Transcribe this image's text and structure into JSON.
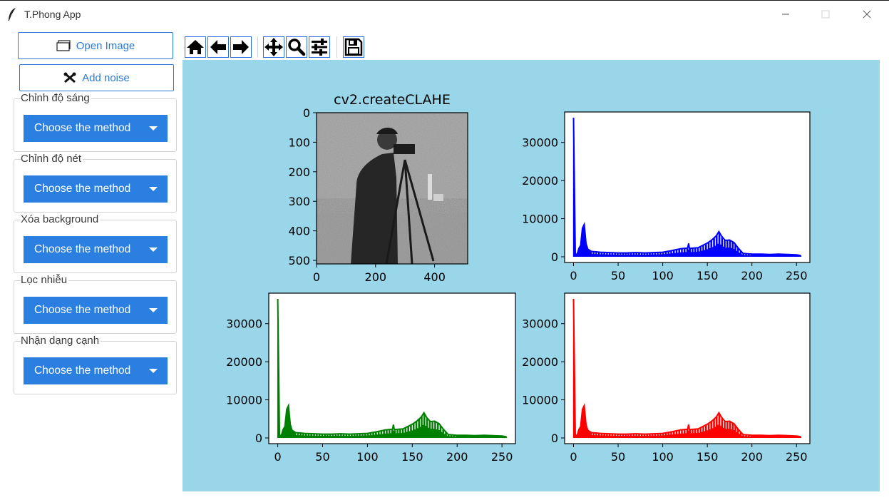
{
  "window": {
    "title": "T.Phong App"
  },
  "left_panel": {
    "open_image_label": "Open Image",
    "add_noise_label": "Add noise",
    "groups": [
      {
        "label": "Chỉnh độ sáng",
        "dropdown": "Choose the method"
      },
      {
        "label": "Chỉnh độ nét",
        "dropdown": "Choose the method"
      },
      {
        "label": "Xóa background",
        "dropdown": "Choose the method"
      },
      {
        "label": "Lọc nhiễu",
        "dropdown": "Choose the method"
      },
      {
        "label": "Nhận dạng cạnh",
        "dropdown": "Choose the method"
      }
    ]
  },
  "toolbar": {
    "icons": [
      "home-icon",
      "back-arrow-icon",
      "forward-arrow-icon",
      "pan-icon",
      "zoom-icon",
      "configure-subplots-icon",
      "save-icon"
    ]
  },
  "colors": {
    "accent": "#2b7fe0",
    "canvas_bg": "#99d6e9",
    "blue": "#0000ff",
    "green": "#008000",
    "red": "#ff0000"
  },
  "chart_data": [
    {
      "type": "image",
      "title": "cv2.createCLAHE",
      "x_ticks": [
        "0",
        "200",
        "400"
      ],
      "y_ticks": [
        "0",
        "100",
        "200",
        "300",
        "400",
        "500"
      ]
    },
    {
      "type": "line",
      "color": "blue",
      "xlim": [
        -10,
        265
      ],
      "ylim": [
        -1500,
        38000
      ],
      "x_ticks": [
        "0",
        "50",
        "100",
        "150",
        "200",
        "250"
      ],
      "y_ticks": [
        "0",
        "10000",
        "20000",
        "30000"
      ],
      "x": [
        0,
        2,
        4,
        6,
        8,
        10,
        12,
        14,
        16,
        18,
        20,
        25,
        30,
        40,
        50,
        60,
        70,
        80,
        90,
        100,
        110,
        120,
        128,
        129,
        130,
        140,
        150,
        155,
        160,
        163,
        166,
        170,
        175,
        180,
        185,
        190,
        200,
        210,
        220,
        230,
        240,
        250,
        255
      ],
      "y": [
        36500,
        800,
        600,
        2200,
        3000,
        7500,
        8500,
        3500,
        2000,
        1700,
        1400,
        1300,
        1200,
        1100,
        1000,
        1000,
        1100,
        1000,
        1100,
        1200,
        1600,
        2100,
        2300,
        3500,
        2200,
        2400,
        3600,
        4400,
        5500,
        6600,
        5400,
        4300,
        4400,
        3700,
        2200,
        900,
        700,
        700,
        600,
        700,
        600,
        500,
        300
      ]
    },
    {
      "type": "line",
      "color": "green",
      "xlim": [
        -10,
        265
      ],
      "ylim": [
        -1500,
        38000
      ],
      "x_ticks": [
        "0",
        "50",
        "100",
        "150",
        "200",
        "250"
      ],
      "y_ticks": [
        "0",
        "10000",
        "20000",
        "30000"
      ],
      "x": [
        0,
        2,
        4,
        6,
        8,
        10,
        12,
        14,
        16,
        18,
        20,
        25,
        30,
        40,
        50,
        60,
        70,
        80,
        90,
        100,
        110,
        120,
        128,
        129,
        130,
        140,
        150,
        155,
        160,
        163,
        166,
        170,
        175,
        180,
        185,
        190,
        200,
        210,
        220,
        230,
        240,
        250,
        255
      ],
      "y": [
        36500,
        800,
        600,
        2200,
        3000,
        7500,
        8500,
        3500,
        2000,
        1700,
        1400,
        1300,
        1200,
        1100,
        1000,
        1000,
        1100,
        1000,
        1100,
        1200,
        1600,
        2100,
        2300,
        3500,
        2200,
        2400,
        3600,
        4400,
        5500,
        6600,
        5400,
        4300,
        4400,
        3700,
        2200,
        900,
        700,
        700,
        600,
        700,
        600,
        500,
        300
      ]
    },
    {
      "type": "line",
      "color": "red",
      "xlim": [
        -10,
        265
      ],
      "ylim": [
        -1500,
        38000
      ],
      "x_ticks": [
        "0",
        "50",
        "100",
        "150",
        "200",
        "250"
      ],
      "y_ticks": [
        "0",
        "10000",
        "20000",
        "30000"
      ],
      "x": [
        0,
        2,
        4,
        6,
        8,
        10,
        12,
        14,
        16,
        18,
        20,
        25,
        30,
        40,
        50,
        60,
        70,
        80,
        90,
        100,
        110,
        120,
        128,
        129,
        130,
        140,
        150,
        155,
        160,
        163,
        166,
        170,
        175,
        180,
        185,
        190,
        200,
        210,
        220,
        230,
        240,
        250,
        255
      ],
      "y": [
        36500,
        800,
        600,
        2200,
        3000,
        7500,
        8500,
        3500,
        2000,
        1700,
        1400,
        1300,
        1200,
        1100,
        1000,
        1000,
        1100,
        1000,
        1100,
        1200,
        1600,
        2100,
        2300,
        3500,
        2200,
        2400,
        3600,
        4400,
        5500,
        6600,
        5400,
        4300,
        4400,
        3700,
        2200,
        900,
        700,
        700,
        600,
        700,
        600,
        500,
        300
      ]
    }
  ]
}
